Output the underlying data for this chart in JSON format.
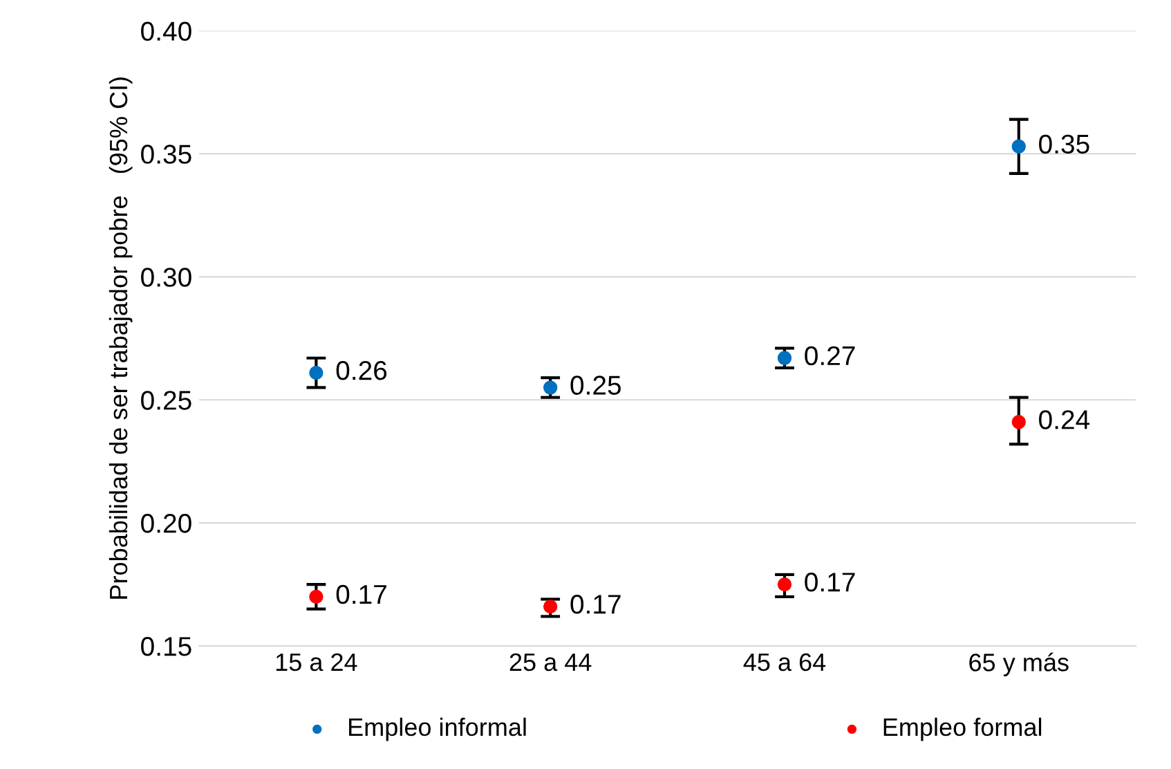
{
  "chart_data": {
    "type": "scatter",
    "ylabel": "Probabilidad de ser trabajador pobre   (95% CI)",
    "categories": [
      "15 a 24",
      "25 a 44",
      "45 a 64",
      "65 y más"
    ],
    "series": [
      {
        "name": "Empleo informal",
        "color": "#0070c0",
        "values": [
          0.261,
          0.255,
          0.267,
          0.353
        ],
        "errors": [
          [
            0.255,
            0.267
          ],
          [
            0.251,
            0.259
          ],
          [
            0.263,
            0.271
          ],
          [
            0.342,
            0.364
          ]
        ],
        "value_labels": [
          "0.26",
          "0.25",
          "0.27",
          "0.35"
        ]
      },
      {
        "name": "Empleo formal",
        "color": "#ff0000",
        "values": [
          0.17,
          0.166,
          0.175,
          0.241
        ],
        "errors": [
          [
            0.165,
            0.175
          ],
          [
            0.162,
            0.169
          ],
          [
            0.17,
            0.179
          ],
          [
            0.232,
            0.251
          ]
        ],
        "value_labels": [
          "0.17",
          "0.17",
          "0.17",
          "0.24"
        ]
      }
    ],
    "ylim": [
      0.15,
      0.4
    ],
    "yticks": [
      {
        "value": 0.15,
        "label": "0.15"
      },
      {
        "value": 0.2,
        "label": "0.20"
      },
      {
        "value": 0.25,
        "label": "0.25"
      },
      {
        "value": 0.3,
        "label": "0.30"
      },
      {
        "value": 0.35,
        "label": "0.35"
      },
      {
        "value": 0.4,
        "label": "0.40"
      }
    ],
    "grid": "y",
    "legend": "bottom",
    "marker": "circle"
  }
}
